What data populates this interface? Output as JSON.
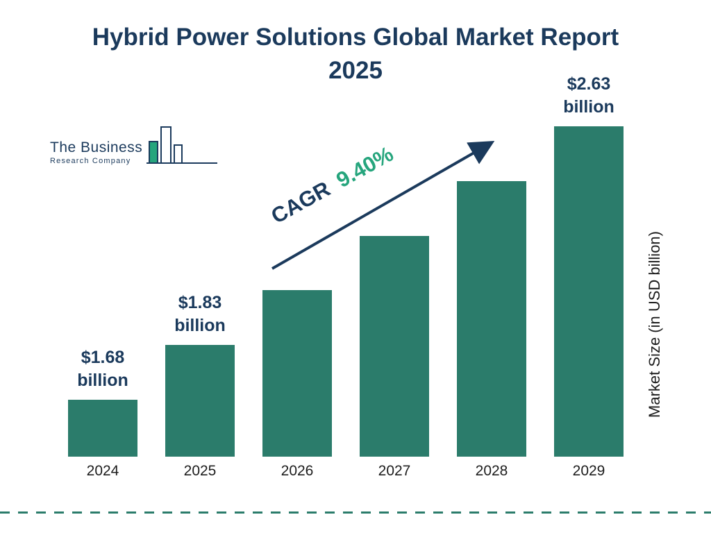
{
  "title": {
    "line1": "Hybrid Power Solutions Global Market Report",
    "line2": "2025"
  },
  "logo": {
    "line1": "The Business",
    "line2": "Research Company"
  },
  "cagr": {
    "label": "CAGR",
    "value": "9.40%"
  },
  "y_axis_label": "Market Size (in USD billion)",
  "colors": {
    "navy": "#1B3A5C",
    "teal": "#2B7C6B",
    "green": "#26A57D",
    "text": "#1C1C1C"
  },
  "chart_data": {
    "type": "bar",
    "title": "Hybrid Power Solutions Global Market Report 2025",
    "categories": [
      "2024",
      "2025",
      "2026",
      "2027",
      "2028",
      "2029"
    ],
    "values": [
      1.68,
      1.83,
      2.0,
      2.19,
      2.4,
      2.63
    ],
    "value_labels": [
      "$1.68 billion",
      "$1.83 billion",
      null,
      null,
      null,
      "$2.63 billion"
    ],
    "ylabel": "Market Size (in USD billion)",
    "unit": "USD billion",
    "annotations": [
      "CAGR 9.40%"
    ],
    "legend": "off",
    "grid": "off"
  }
}
